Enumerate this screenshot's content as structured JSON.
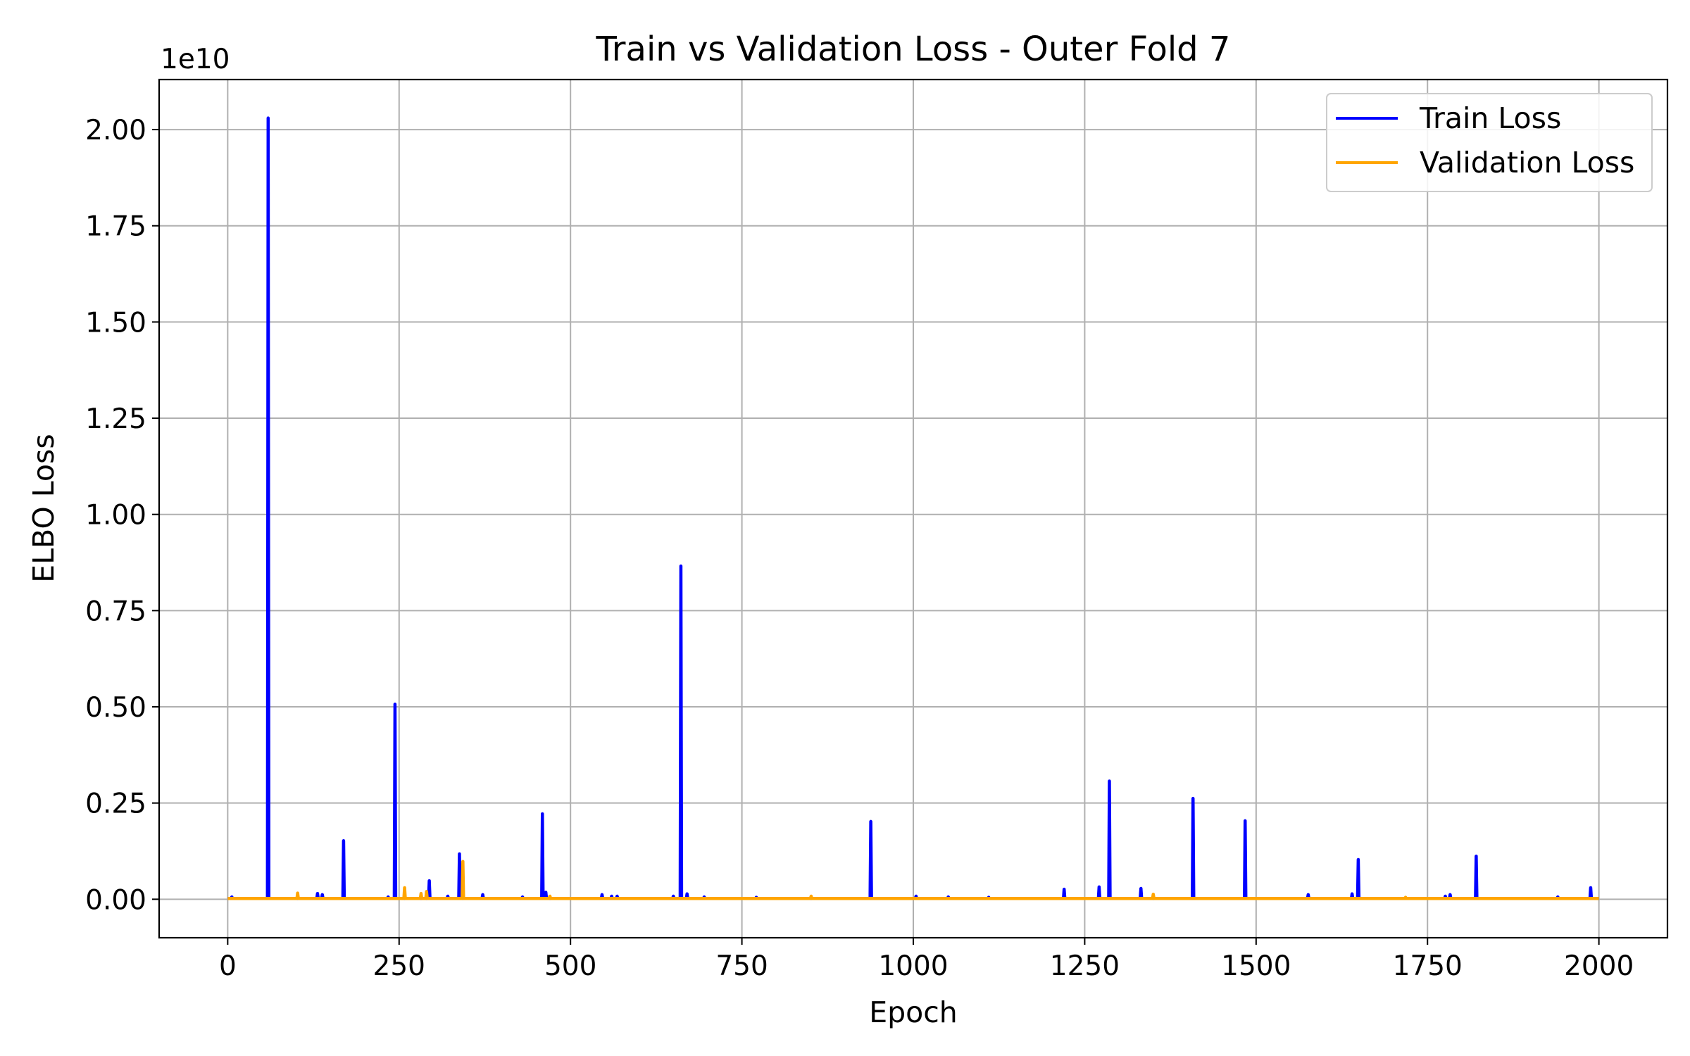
{
  "chart_data": {
    "type": "line",
    "title": "Train vs Validation Loss - Outer Fold 7",
    "xlabel": "Epoch",
    "ylabel": "ELBO Loss",
    "y_offset_label": "1e10",
    "xlim": [
      -100,
      2100
    ],
    "ylim": [
      -0.1,
      2.13
    ],
    "x_ticks": [
      0,
      250,
      500,
      750,
      1000,
      1250,
      1500,
      1750,
      2000
    ],
    "x_tick_labels": [
      "0",
      "250",
      "500",
      "750",
      "1000",
      "1250",
      "1500",
      "1750",
      "2000"
    ],
    "y_ticks": [
      0,
      0.25,
      0.5,
      0.75,
      1.0,
      1.25,
      1.5,
      1.75,
      2.0
    ],
    "y_tick_labels": [
      "0.00",
      "0.25",
      "0.50",
      "0.75",
      "1.00",
      "1.25",
      "1.50",
      "1.75",
      "2.00"
    ],
    "grid": true,
    "legend_position": "top-right",
    "x_range": [
      0,
      2000
    ],
    "series": [
      {
        "name": "Train Loss",
        "color": "#0000ff",
        "baseline": 0.002,
        "spikes": [
          [
            6,
            0.006
          ],
          [
            59,
            2.03
          ],
          [
            131,
            0.015
          ],
          [
            138,
            0.012
          ],
          [
            169,
            0.152
          ],
          [
            234,
            0.006
          ],
          [
            244,
            0.507
          ],
          [
            294,
            0.048
          ],
          [
            321,
            0.008
          ],
          [
            338,
            0.118
          ],
          [
            372,
            0.012
          ],
          [
            430,
            0.006
          ],
          [
            459,
            0.222
          ],
          [
            464,
            0.018
          ],
          [
            546,
            0.012
          ],
          [
            560,
            0.008
          ],
          [
            568,
            0.008
          ],
          [
            650,
            0.008
          ],
          [
            661,
            0.866
          ],
          [
            670,
            0.014
          ],
          [
            695,
            0.006
          ],
          [
            771,
            0.005
          ],
          [
            938,
            0.202
          ],
          [
            1004,
            0.008
          ],
          [
            1051,
            0.006
          ],
          [
            1110,
            0.005
          ],
          [
            1220,
            0.026
          ],
          [
            1271,
            0.032
          ],
          [
            1286,
            0.307
          ],
          [
            1332,
            0.028
          ],
          [
            1408,
            0.262
          ],
          [
            1484,
            0.204
          ],
          [
            1576,
            0.012
          ],
          [
            1640,
            0.014
          ],
          [
            1649,
            0.103
          ],
          [
            1776,
            0.008
          ],
          [
            1783,
            0.012
          ],
          [
            1821,
            0.112
          ],
          [
            1940,
            0.006
          ],
          [
            1988,
            0.03
          ]
        ]
      },
      {
        "name": "Validation Loss",
        "color": "#ffa500",
        "baseline": 0.002,
        "spikes": [
          [
            102,
            0.016
          ],
          [
            258,
            0.03
          ],
          [
            282,
            0.015
          ],
          [
            290,
            0.02
          ],
          [
            343,
            0.098
          ],
          [
            470,
            0.008
          ],
          [
            851,
            0.008
          ],
          [
            1350,
            0.013
          ],
          [
            1718,
            0.005
          ]
        ]
      }
    ]
  }
}
